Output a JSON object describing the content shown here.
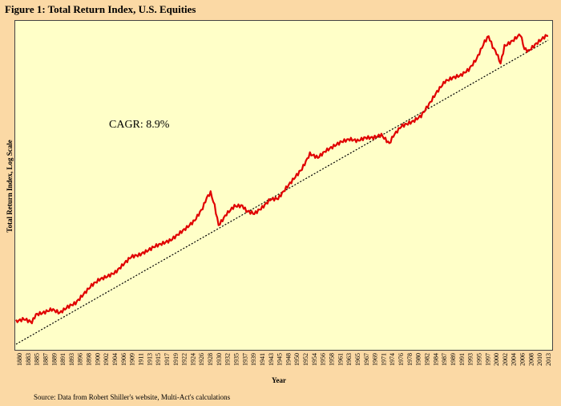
{
  "figure_title": "Figure 1: Total Return Index, U.S. Equities",
  "source_note": "Source:  Data from Robert Shiller's  website, Multi-Act's calculations",
  "colors": {
    "background": "#fbd9a5",
    "plot_bg": "#ffffc8",
    "series": "#e00000",
    "trend": "#000000"
  },
  "chart_data": {
    "type": "line",
    "xlabel": "Year",
    "ylabel": "Total Return Index, Log Scale",
    "annotation": "CAGR: 8.9%",
    "log_scale": true,
    "grid": false,
    "x_ticks": [
      "1880",
      "1883",
      "1885",
      "1887",
      "1889",
      "1891",
      "1893",
      "1896",
      "1898",
      "1900",
      "1902",
      "1904",
      "1906",
      "1909",
      "1911",
      "1913",
      "1915",
      "1917",
      "1919",
      "1922",
      "1924",
      "1926",
      "1928",
      "1930",
      "1932",
      "1935",
      "1937",
      "1939",
      "1941",
      "1943",
      "1945",
      "1948",
      "1950",
      "1952",
      "1954",
      "1956",
      "1958",
      "1961",
      "1963",
      "1965",
      "1967",
      "1969",
      "1971",
      "1974",
      "1976",
      "1978",
      "1980",
      "1982",
      "1984",
      "1987",
      "1989",
      "1991",
      "1993",
      "1995",
      "1997",
      "2000",
      "2002",
      "2004",
      "2006",
      "2008",
      "2010",
      "2013"
    ],
    "series": [
      {
        "type": "line",
        "x": [
          1880,
          1882,
          1884,
          1885,
          1887,
          1889,
          1891,
          1893,
          1895,
          1897,
          1899,
          1901,
          1903,
          1905,
          1907,
          1909,
          1911,
          1913,
          1915,
          1917,
          1919,
          1921,
          1923,
          1925,
          1927,
          1928,
          1929,
          1930,
          1931,
          1932,
          1933,
          1935,
          1937,
          1938,
          1940,
          1942,
          1944,
          1946,
          1948,
          1950,
          1952,
          1954,
          1956,
          1958,
          1960,
          1962,
          1964,
          1966,
          1968,
          1970,
          1972,
          1974,
          1975,
          1977,
          1980,
          1982,
          1984,
          1986,
          1988,
          1990,
          1992,
          1994,
          1996,
          1998,
          1999,
          2000,
          2001,
          2002,
          2003,
          2005,
          2007,
          2008,
          2009,
          2011,
          2013,
          2014
        ],
        "y": [
          0.32,
          0.33,
          0.31,
          0.35,
          0.36,
          0.38,
          0.36,
          0.4,
          0.43,
          0.5,
          0.58,
          0.64,
          0.67,
          0.71,
          0.8,
          0.9,
          0.92,
          0.98,
          1.06,
          1.12,
          1.19,
          1.33,
          1.48,
          1.67,
          2.04,
          2.4,
          2.6,
          2.1,
          1.52,
          1.65,
          1.81,
          2.04,
          2.04,
          1.88,
          1.8,
          2.0,
          2.3,
          2.36,
          2.81,
          3.3,
          3.85,
          4.89,
          4.57,
          5.05,
          5.4,
          5.79,
          6.02,
          5.89,
          6.24,
          6.3,
          6.64,
          5.8,
          6.6,
          7.7,
          8.26,
          8.96,
          10.72,
          13.02,
          15.34,
          16.37,
          17.12,
          18.94,
          22.8,
          30.3,
          33.2,
          28.07,
          25.26,
          21.36,
          28.18,
          30.51,
          33.78,
          26.52,
          25.4,
          28.48,
          31.58,
          32.86
        ]
      }
    ]
  }
}
